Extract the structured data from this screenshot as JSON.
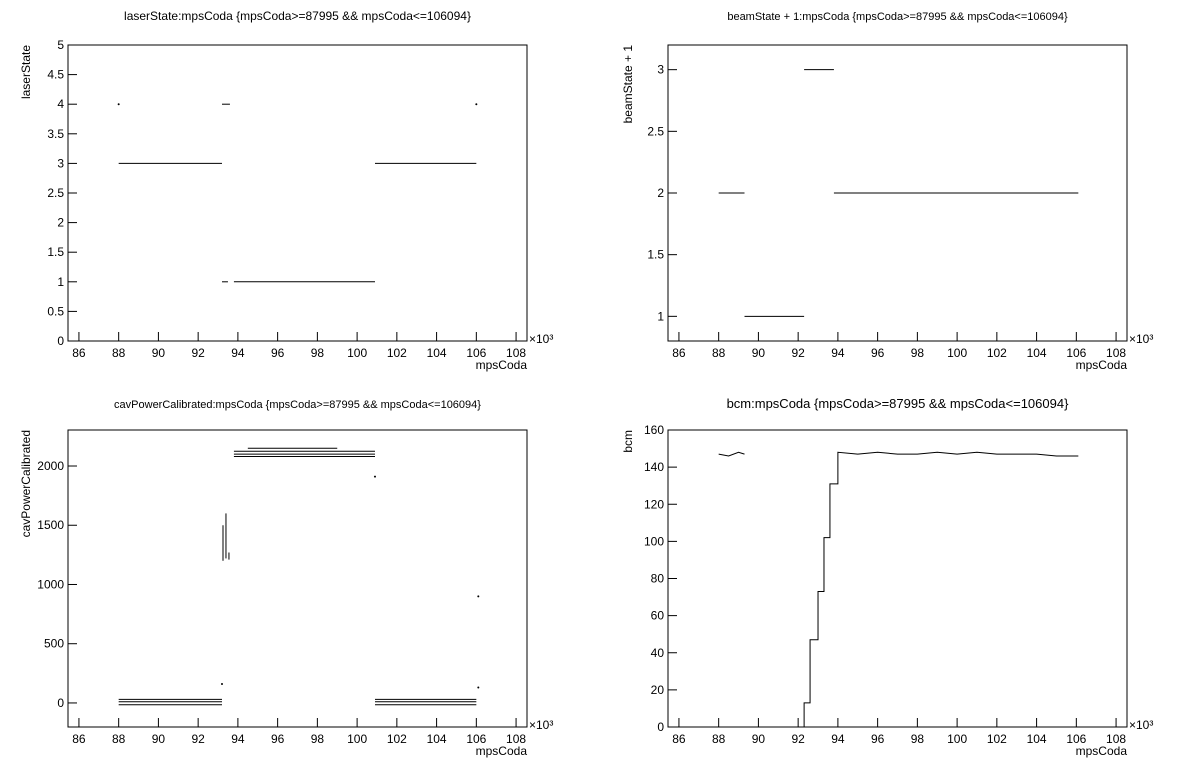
{
  "chart_data": [
    {
      "type": "line",
      "title": "laserState:mpsCoda {mpsCoda>=87995 && mpsCoda<=106094}",
      "x_label": "mpsCoda",
      "y_label": "laserState",
      "x_exponent": "×10³",
      "xlim": [
        85.45,
        108.55
      ],
      "xticks": [
        86,
        88,
        90,
        92,
        94,
        96,
        98,
        100,
        102,
        104,
        106,
        108
      ],
      "ylim": [
        0,
        5
      ],
      "yticks": [
        0,
        0.5,
        1,
        1.5,
        2,
        2.5,
        3,
        3.5,
        4,
        4.5,
        5
      ],
      "series": [
        {
          "color": "#000000",
          "x": [
            88,
            null,
            93.2,
            93.6,
            null,
            106,
            null,
            88,
            93.2,
            null,
            100.9,
            106,
            null,
            93.2,
            93.5,
            null,
            93.8,
            100.9
          ],
          "values": [
            4,
            null,
            4,
            4,
            null,
            4,
            null,
            3,
            3,
            null,
            3,
            3,
            null,
            1,
            1,
            null,
            1,
            1
          ]
        }
      ]
    },
    {
      "type": "line",
      "title": "beamState + 1:mpsCoda {mpsCoda>=87995 && mpsCoda<=106094}",
      "x_label": "mpsCoda",
      "y_label": "beamState + 1",
      "x_exponent": "×10³",
      "xlim": [
        85.45,
        108.55
      ],
      "xticks": [
        86,
        88,
        90,
        92,
        94,
        96,
        98,
        100,
        102,
        104,
        106,
        108
      ],
      "ylim": [
        0.8,
        3.2
      ],
      "yticks": [
        1,
        1.5,
        2,
        2.5,
        3
      ],
      "series": [
        {
          "color": "#000000",
          "x": [
            88,
            89.3,
            null,
            89.3,
            92.3,
            null,
            92.3,
            93.8,
            null,
            93.8,
            106.1
          ],
          "values": [
            2,
            2,
            null,
            1,
            1,
            null,
            3,
            3,
            null,
            2,
            2
          ]
        }
      ]
    },
    {
      "type": "line",
      "title": "cavPowerCalibrated:mpsCoda {mpsCoda>=87995 && mpsCoda<=106094}",
      "x_label": "mpsCoda",
      "y_label": "cavPowerCalibrated",
      "x_exponent": "×10³",
      "xlim": [
        85.45,
        108.55
      ],
      "xticks": [
        86,
        88,
        90,
        92,
        94,
        96,
        98,
        100,
        102,
        104,
        106,
        108
      ],
      "ylim": [
        -203,
        2304
      ],
      "yticks": [
        0,
        500,
        1000,
        1500,
        2000
      ],
      "series": [
        {
          "color": "#000000",
          "x": [
            88,
            93.2,
            null,
            88,
            93.2,
            null,
            88,
            93.2,
            null,
            100.9,
            106,
            null,
            100.9,
            106,
            null,
            100.9,
            106,
            null,
            93.8,
            100.9,
            null,
            93.8,
            100.9,
            null,
            93.8,
            100.9,
            null,
            93.25,
            93.25,
            null,
            93.4,
            93.4,
            null,
            93.55,
            93.55,
            null,
            94.5,
            99,
            null,
            93.2,
            null,
            100.9,
            null,
            106.1,
            null,
            106.1
          ],
          "values": [
            30,
            30,
            null,
            10,
            10,
            null,
            -15,
            -15,
            null,
            30,
            30,
            null,
            10,
            10,
            null,
            -15,
            -15,
            null,
            2125,
            2125,
            null,
            2100,
            2100,
            null,
            2080,
            2080,
            null,
            1200,
            1500,
            null,
            1220,
            1600,
            null,
            1210,
            1270,
            null,
            2150,
            2150,
            null,
            160,
            null,
            1910,
            null,
            900,
            null,
            130
          ]
        }
      ]
    },
    {
      "type": "line",
      "title": "bcm:mpsCoda {mpsCoda>=87995 && mpsCoda<=106094}",
      "x_label": "mpsCoda",
      "y_label": "bcm",
      "x_exponent": "×10³",
      "xlim": [
        85.45,
        108.55
      ],
      "xticks": [
        86,
        88,
        90,
        92,
        94,
        96,
        98,
        100,
        102,
        104,
        106,
        108
      ],
      "ylim": [
        0,
        160
      ],
      "yticks": [
        0,
        20,
        40,
        60,
        80,
        100,
        120,
        140,
        160
      ],
      "series": [
        {
          "color": "#000000",
          "x": [
            88,
            88.5,
            89,
            89.3,
            null,
            92.3,
            92.3,
            92.6,
            92.6,
            93.0,
            93.0,
            93.3,
            93.3,
            93.6,
            93.6,
            94.0,
            94.0,
            95,
            96,
            97,
            98,
            99,
            100,
            101,
            102,
            103,
            104,
            105,
            106.1
          ],
          "values": [
            147,
            146,
            148,
            147,
            null,
            0,
            13,
            13,
            47,
            47,
            73,
            73,
            102,
            102,
            131,
            131,
            148,
            147,
            148,
            147,
            147,
            148,
            147,
            148,
            147,
            147,
            147,
            146,
            146
          ]
        }
      ]
    }
  ]
}
